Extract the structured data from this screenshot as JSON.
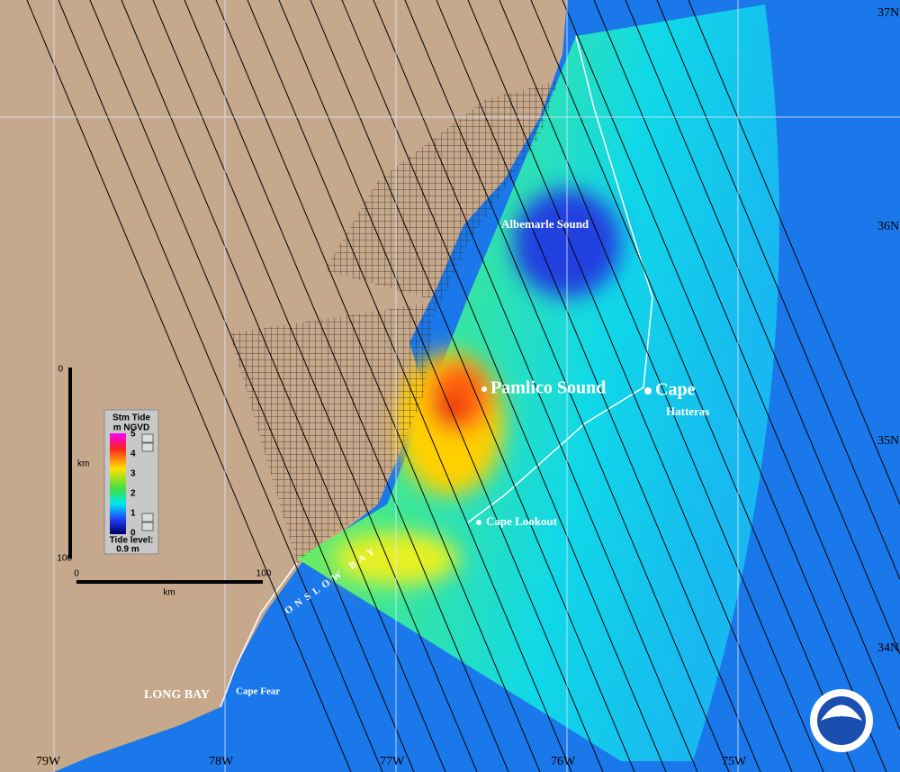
{
  "map": {
    "latitude_labels": [
      "37N",
      "36N",
      "35N",
      "34N"
    ],
    "longitude_labels": [
      "79W",
      "78W",
      "77W",
      "76W",
      "75W"
    ],
    "places": {
      "albemarle_sound": "Albemarle Sound",
      "pamlico_sound": "Pamlico Sound",
      "cape": "Cape",
      "hatteras": "Hatteras",
      "cape_lookout": "Cape Lookout",
      "long_bay": "LONG BAY",
      "cape_fear": "Cape Fear",
      "onslow_bay": "ONSLOW BAY"
    }
  },
  "legend": {
    "title": "Stm Tide",
    "units": "m NGVD",
    "ticks": [
      "5",
      "4",
      "3",
      "2",
      "1",
      "0"
    ],
    "tide_level_label": "Tide level:",
    "tide_level": "0.9 m"
  },
  "scale": {
    "vertical": {
      "start": "0",
      "unit": "km",
      "end": "100"
    },
    "horizontal": {
      "start": "0",
      "unit": "km",
      "end": "100"
    }
  },
  "logo": "NOAA"
}
